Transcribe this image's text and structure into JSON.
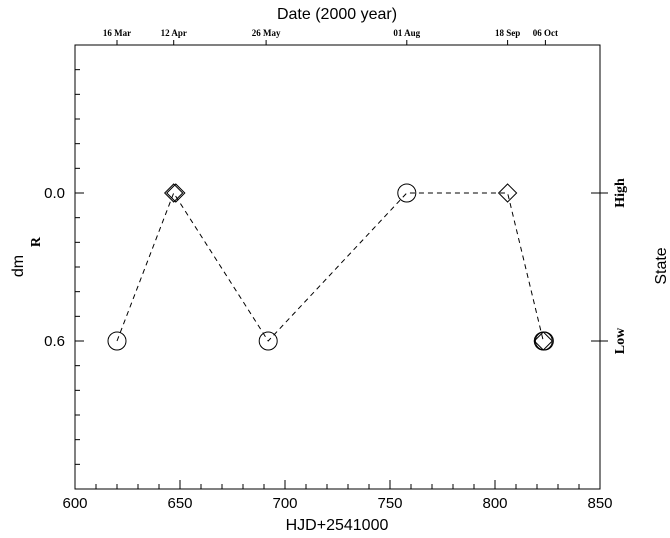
{
  "chart_data": {
    "type": "scatter",
    "title": "Date (2000 year)",
    "xlabel": "HJD+2541000",
    "ylabel": "dm",
    "ylabel_sub": "R",
    "right_label": "State",
    "xlim": [
      600,
      850
    ],
    "ylim": [
      1.2,
      -0.6
    ],
    "y_inverted": true,
    "x_ticks": [
      "600",
      "650",
      "700",
      "750",
      "800",
      "850"
    ],
    "y_ticks": [
      "0.0",
      "0.6"
    ],
    "top_date_ticks": [
      {
        "x": 620,
        "label": "16 Mar"
      },
      {
        "x": 647,
        "label": "12 Apr"
      },
      {
        "x": 691,
        "label": "26 May"
      },
      {
        "x": 758,
        "label": "01 Aug"
      },
      {
        "x": 806,
        "label": "18 Sep"
      },
      {
        "x": 824,
        "label": "06 Oct"
      }
    ],
    "right_state_ticks": [
      {
        "y": 0.0,
        "label": "High"
      },
      {
        "y": 0.6,
        "label": "Low"
      }
    ],
    "series": [
      {
        "marker": "circle",
        "x": [
          620,
          692,
          758,
          823,
          823.5
        ],
        "y": [
          0.6,
          0.6,
          0.0,
          0.6,
          0.6
        ]
      },
      {
        "marker": "diamond",
        "x": [
          647,
          648,
          806,
          823
        ],
        "y": [
          0.0,
          0.0,
          0.0,
          0.6
        ]
      }
    ],
    "line": {
      "style": "dashed",
      "x": [
        620,
        647,
        692,
        758,
        806,
        823
      ],
      "y": [
        0.6,
        0.0,
        0.6,
        0.0,
        0.0,
        0.6
      ]
    },
    "grid": false,
    "legend": "none"
  }
}
